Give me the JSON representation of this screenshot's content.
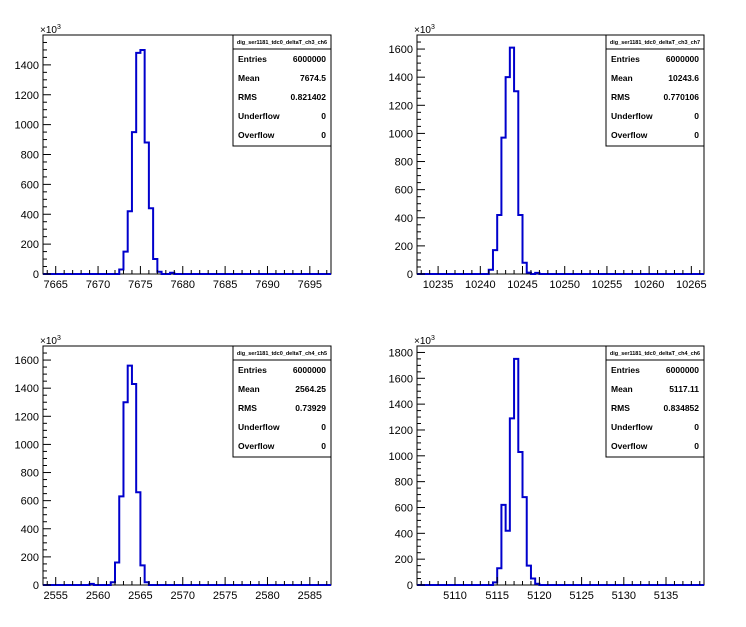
{
  "chart_data": [
    {
      "type": "histogram",
      "multiplier": "×10",
      "multiplier_exp": "3",
      "stats": {
        "title": "dig_ser1181_tdc0_deltaT_ch3_ch6",
        "rows": [
          {
            "label": "Entries",
            "value": "6000000"
          },
          {
            "label": "Mean",
            "value": "7674.5"
          },
          {
            "label": "RMS",
            "value": "0.821402"
          },
          {
            "label": "Underflow",
            "value": "0"
          },
          {
            "label": "Overflow",
            "value": "0"
          }
        ]
      },
      "xlim": [
        7663.5,
        7697.5
      ],
      "ylim": [
        0,
        1600
      ],
      "xticks": [
        7665,
        7670,
        7675,
        7680,
        7685,
        7690,
        7695
      ],
      "yticks": [
        0,
        200,
        400,
        600,
        800,
        1000,
        1200,
        1400
      ],
      "bin_width": 0.5,
      "bins": [
        {
          "x": 7672.5,
          "y": 30
        },
        {
          "x": 7673.0,
          "y": 150
        },
        {
          "x": 7673.5,
          "y": 420
        },
        {
          "x": 7674.0,
          "y": 950
        },
        {
          "x": 7674.5,
          "y": 1480
        },
        {
          "x": 7675.0,
          "y": 1500
        },
        {
          "x": 7675.5,
          "y": 880
        },
        {
          "x": 7676.0,
          "y": 440
        },
        {
          "x": 7676.5,
          "y": 100
        },
        {
          "x": 7677.0,
          "y": 15
        },
        {
          "x": 7678.5,
          "y": 8
        }
      ]
    },
    {
      "type": "histogram",
      "multiplier": "×10",
      "multiplier_exp": "3",
      "stats": {
        "title": "dig_ser1181_tdc0_deltaT_ch3_ch7",
        "rows": [
          {
            "label": "Entries",
            "value": "6000000"
          },
          {
            "label": "Mean",
            "value": "10243.6"
          },
          {
            "label": "RMS",
            "value": "0.770106"
          },
          {
            "label": "Underflow",
            "value": "0"
          },
          {
            "label": "Overflow",
            "value": "0"
          }
        ]
      },
      "xlim": [
        10232.5,
        10266.5
      ],
      "ylim": [
        0,
        1700
      ],
      "xticks": [
        10235,
        10240,
        10245,
        10250,
        10255,
        10260,
        10265
      ],
      "yticks": [
        0,
        200,
        400,
        600,
        800,
        1000,
        1200,
        1400,
        1600
      ],
      "bin_width": 0.5,
      "bins": [
        {
          "x": 10241.0,
          "y": 30
        },
        {
          "x": 10241.5,
          "y": 170
        },
        {
          "x": 10242.0,
          "y": 420
        },
        {
          "x": 10242.5,
          "y": 970
        },
        {
          "x": 10243.0,
          "y": 1400
        },
        {
          "x": 10243.5,
          "y": 1610
        },
        {
          "x": 10244.0,
          "y": 1300
        },
        {
          "x": 10244.5,
          "y": 420
        },
        {
          "x": 10245.0,
          "y": 80
        },
        {
          "x": 10245.5,
          "y": 10
        },
        {
          "x": 10246.5,
          "y": 8
        }
      ]
    },
    {
      "type": "histogram",
      "multiplier": "×10",
      "multiplier_exp": "3",
      "stats": {
        "title": "dig_ser1181_tdc0_deltaT_ch4_ch5",
        "rows": [
          {
            "label": "Entries",
            "value": "6000000"
          },
          {
            "label": "Mean",
            "value": "2564.25"
          },
          {
            "label": "RMS",
            "value": "0.73929"
          },
          {
            "label": "Underflow",
            "value": "0"
          },
          {
            "label": "Overflow",
            "value": "0"
          }
        ]
      },
      "xlim": [
        2553.5,
        2587.5
      ],
      "ylim": [
        0,
        1700
      ],
      "xticks": [
        2555,
        2560,
        2565,
        2570,
        2575,
        2580,
        2585
      ],
      "yticks": [
        0,
        200,
        400,
        600,
        800,
        1000,
        1200,
        1400,
        1600
      ],
      "bin_width": 0.5,
      "bins": [
        {
          "x": 2559.0,
          "y": 8
        },
        {
          "x": 2561.5,
          "y": 20
        },
        {
          "x": 2562.0,
          "y": 160
        },
        {
          "x": 2562.5,
          "y": 630
        },
        {
          "x": 2563.0,
          "y": 1300
        },
        {
          "x": 2563.5,
          "y": 1560
        },
        {
          "x": 2564.0,
          "y": 1430
        },
        {
          "x": 2564.5,
          "y": 660
        },
        {
          "x": 2565.0,
          "y": 140
        },
        {
          "x": 2565.5,
          "y": 20
        }
      ]
    },
    {
      "type": "histogram",
      "multiplier": "×10",
      "multiplier_exp": "3",
      "stats": {
        "title": "dig_ser1181_tdc0_deltaT_ch4_ch6",
        "rows": [
          {
            "label": "Entries",
            "value": "6000000"
          },
          {
            "label": "Mean",
            "value": "5117.11"
          },
          {
            "label": "RMS",
            "value": "0.834852"
          },
          {
            "label": "Underflow",
            "value": "0"
          },
          {
            "label": "Overflow",
            "value": "0"
          }
        ]
      },
      "xlim": [
        5105.5,
        5139.5
      ],
      "ylim": [
        0,
        1850
      ],
      "xticks": [
        5110,
        5115,
        5120,
        5125,
        5130,
        5135
      ],
      "yticks": [
        0,
        200,
        400,
        600,
        800,
        1000,
        1200,
        1400,
        1600,
        1800
      ],
      "bin_width": 0.5,
      "bins": [
        {
          "x": 5114.5,
          "y": 20
        },
        {
          "x": 5115.0,
          "y": 130
        },
        {
          "x": 5115.5,
          "y": 620
        },
        {
          "x": 5116.0,
          "y": 420
        },
        {
          "x": 5116.5,
          "y": 1290
        },
        {
          "x": 5117.0,
          "y": 1750
        },
        {
          "x": 5117.5,
          "y": 1030
        },
        {
          "x": 5118.0,
          "y": 680
        },
        {
          "x": 5118.5,
          "y": 150
        },
        {
          "x": 5119.0,
          "y": 50
        },
        {
          "x": 5119.5,
          "y": 10
        }
      ]
    }
  ],
  "colors": {
    "line": "#0000cc",
    "axis": "#000000",
    "stats_border": "#000000"
  }
}
